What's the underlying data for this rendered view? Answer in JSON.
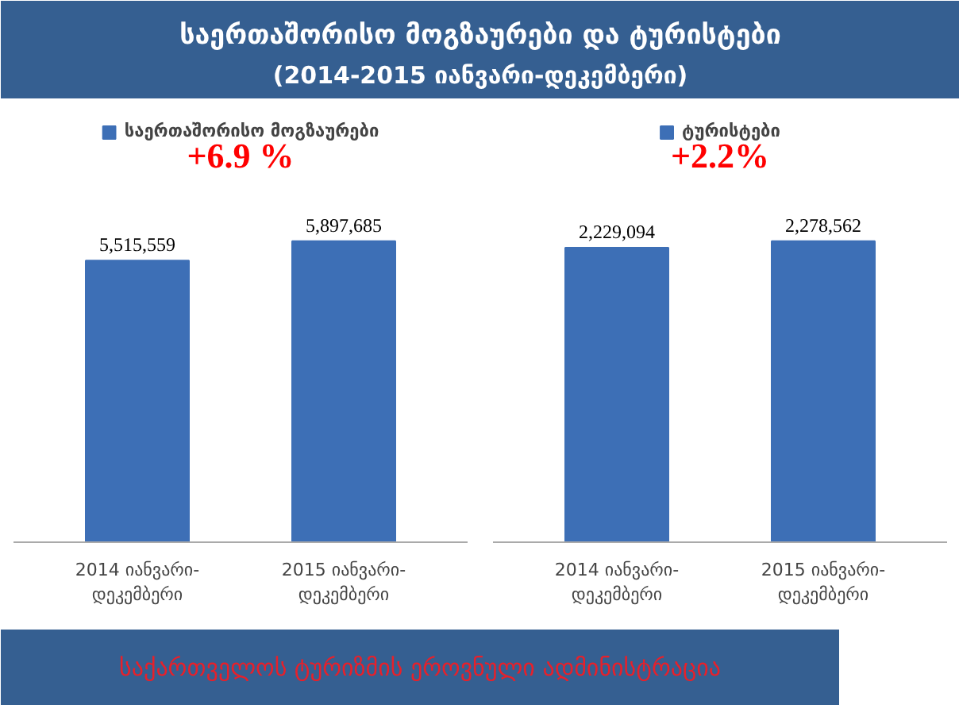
{
  "chart_data": [
    {
      "type": "bar",
      "title": "საერთაშორისო მოგზაურები და ტურისტები",
      "subtitle": "(2014-2015 იანვარი-დეკემბერი)",
      "categories": [
        "2014 იანვარი-დეკემბერი",
        "2015 იანვარი-დეკემბერი"
      ],
      "series": [
        {
          "name": "საერთაშორისო მოგზაურები",
          "color": "#3d6fb6",
          "values": [
            5515559,
            5897685
          ],
          "value_labels": [
            "5,515,559",
            "5,897,685"
          ]
        }
      ],
      "legend": "top",
      "grid": false,
      "annotations": [
        "+6.9 %",
        "საქართველოს ტურიზმის ეროვნული ადმინისტრაცია"
      ]
    },
    {
      "type": "bar",
      "categories": [
        "2014 იანვარი-დეკემბერი",
        "2015 იანვარი-დეკემბერი"
      ],
      "series": [
        {
          "name": "ტურისტები",
          "color": "#3d6fb6",
          "values": [
            2229094,
            2278562
          ],
          "value_labels": [
            "2,229,094",
            "2,278,562"
          ]
        }
      ],
      "legend": "top",
      "grid": false,
      "annotations": [
        "+2.2%"
      ]
    }
  ]
}
